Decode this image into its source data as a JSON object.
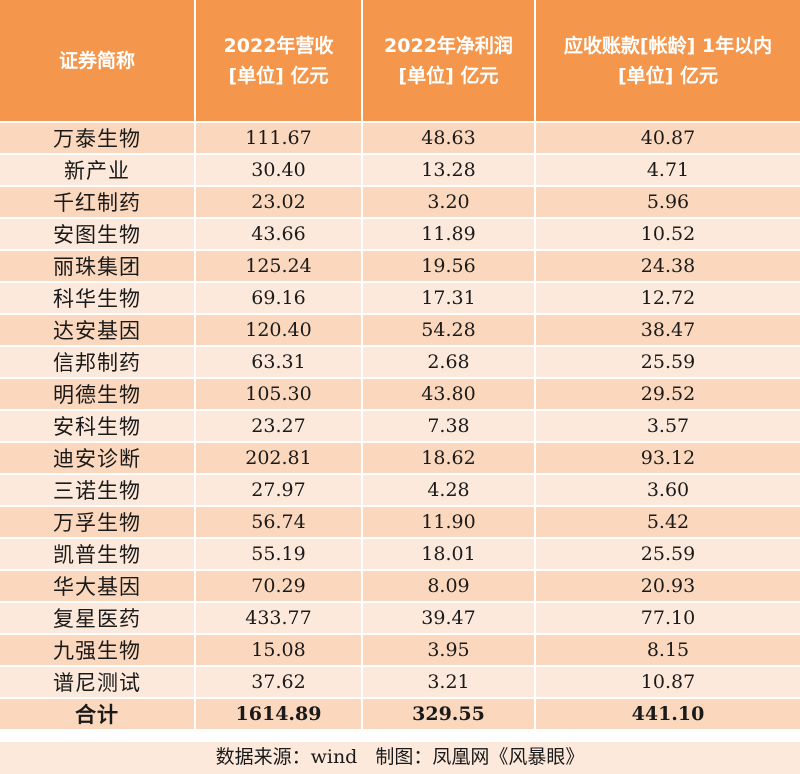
{
  "header": {
    "col0": "证券简称",
    "col1": [
      "2022年营收",
      "[单位] 亿元"
    ],
    "col2": [
      "2022年净利润",
      "[单位] 亿元"
    ],
    "col3": [
      "应收账款[帐龄] 1年以内",
      "[单位] 亿元"
    ]
  },
  "rows": [
    {
      "name": "万泰生物",
      "revenue": "111.67",
      "profit": "48.63",
      "receivable": "40.87"
    },
    {
      "name": "新产业",
      "revenue": "30.40",
      "profit": "13.28",
      "receivable": "4.71"
    },
    {
      "name": "千红制药",
      "revenue": "23.02",
      "profit": "3.20",
      "receivable": "5.96"
    },
    {
      "name": "安图生物",
      "revenue": "43.66",
      "profit": "11.89",
      "receivable": "10.52"
    },
    {
      "name": "丽珠集团",
      "revenue": "125.24",
      "profit": "19.56",
      "receivable": "24.38"
    },
    {
      "name": "科华生物",
      "revenue": "69.16",
      "profit": "17.31",
      "receivable": "12.72"
    },
    {
      "name": "达安基因",
      "revenue": "120.40",
      "profit": "54.28",
      "receivable": "38.47"
    },
    {
      "name": "信邦制药",
      "revenue": "63.31",
      "profit": "2.68",
      "receivable": "25.59"
    },
    {
      "name": "明德生物",
      "revenue": "105.30",
      "profit": "43.80",
      "receivable": "29.52"
    },
    {
      "name": "安科生物",
      "revenue": "23.27",
      "profit": "7.38",
      "receivable": "3.57"
    },
    {
      "name": "迪安诊断",
      "revenue": "202.81",
      "profit": "18.62",
      "receivable": "93.12"
    },
    {
      "name": "三诺生物",
      "revenue": "27.97",
      "profit": "4.28",
      "receivable": "3.60"
    },
    {
      "name": "万孚生物",
      "revenue": "56.74",
      "profit": "11.90",
      "receivable": "5.42"
    },
    {
      "name": "凯普生物",
      "revenue": "55.19",
      "profit": "18.01",
      "receivable": "25.59"
    },
    {
      "name": "华大基因",
      "revenue": "70.29",
      "profit": "8.09",
      "receivable": "20.93"
    },
    {
      "name": "复星医药",
      "revenue": "433.77",
      "profit": "39.47",
      "receivable": "77.10"
    },
    {
      "name": "九强生物",
      "revenue": "15.08",
      "profit": "3.95",
      "receivable": "8.15"
    },
    {
      "name": "谱尼测试",
      "revenue": "37.62",
      "profit": "3.21",
      "receivable": "10.87"
    }
  ],
  "total": {
    "name": "合计",
    "revenue": "1614.89",
    "profit": "329.55",
    "receivable": "441.10"
  },
  "footer": {
    "source": "数据来源：wind",
    "credit": "制图：凤凰网《风暴眼》"
  },
  "colors": {
    "header_bg": "#f4974d",
    "row_odd": "#fbd8bd",
    "row_even": "#fde9db"
  }
}
